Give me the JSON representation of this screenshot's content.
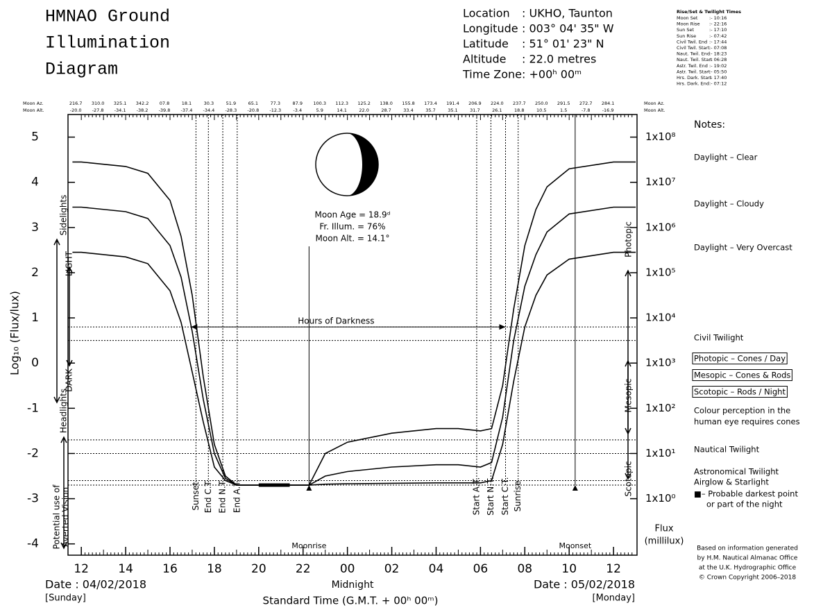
{
  "header": {
    "title_lines": [
      "HMNAO Ground",
      "Illumination",
      "Diagram"
    ],
    "location": [
      [
        "Location",
        ": UKHO, Taunton"
      ],
      [
        "Longitude",
        ": 003° 04' 35\" W"
      ],
      [
        "Latitude",
        ": 51° 01' 23\" N"
      ],
      [
        "Altitude",
        ": 22.0 metres"
      ],
      [
        "Time Zone",
        ": +00ʰ 00ᵐ"
      ]
    ]
  },
  "rise_set": {
    "title": "Rise/Set & Twilight Times",
    "rows": [
      [
        "Moon Set",
        ":- 10:16"
      ],
      [
        "Moon Rise",
        ":- 22:16"
      ],
      [
        "Sun Set",
        ":- 17:10"
      ],
      [
        "Sun Rise",
        ":- 07:42"
      ],
      [
        "Civil Twil. End",
        ":- 17:44"
      ],
      [
        "Civil Twil. Start",
        ":- 07:08"
      ],
      [
        "Naut. Twil. End",
        ":- 18:23"
      ],
      [
        "Naut. Twil. Start",
        ":- 06:28"
      ],
      [
        "Astr. Twil. End",
        ":- 19:02"
      ],
      [
        "Astr. Twil. Start",
        ":- 05:50"
      ],
      [
        "Hrs. Dark. Start",
        ":- 17:40"
      ],
      [
        "Hrs. Dark. End",
        ":- 07:12"
      ]
    ]
  },
  "moon_info": [
    "Moon Age = 18.9ᵈ",
    "Fr. Illum. = 76%",
    "Moon Alt. = 14.1°"
  ],
  "notes": [
    "Notes:",
    "Daylight – Clear",
    "Daylight – Cloudy",
    "Daylight – Very Overcast",
    "Civil Twilight",
    "Photopic – Cones / Day",
    "Mesopic – Cones & Rods",
    "Scotopic – Rods / Night",
    "Colour perception in the",
    "human eye requires cones",
    "Nautical Twilight",
    "Astronomical Twilight",
    "Airglow & Starlight",
    "■– Probable darkest point",
    "or part of the night"
  ],
  "credit": [
    "Based on information generated",
    "by H.M. Nautical Almanac Office",
    "at the U.K. Hydrographic Office",
    "© Crown Copyright 2006–2018"
  ],
  "side_labels": {
    "left": [
      "Sidelights",
      "LIGHT",
      "DARK",
      "Headlights",
      "Potential use of",
      "Averted Vision"
    ],
    "right": [
      "Photopic",
      "Mesopic",
      "Scotopic"
    ]
  },
  "footer": {
    "left_date": "Date : 04/02/2018",
    "left_day": "[Sunday]",
    "midnight": "Midnight",
    "right_date": "Date : 05/02/2018",
    "right_day": "[Monday]",
    "time_label": "Standard Time (G.M.T. + 00ʰ 00ᵐ)"
  },
  "chart_data": {
    "type": "line",
    "y_label": "Log₁₀ (Flux/lux)",
    "y2_label": [
      "Flux",
      "(millilux)"
    ],
    "top_rows": {
      "az_label": "Moon Az.",
      "alt_label": "Moon Alt.",
      "az": [
        "216.7",
        "310.0",
        "325.1",
        "342.2",
        "07.8",
        "18.1",
        "30.3",
        "51.9",
        "65.1",
        "77.3",
        "87.9",
        "100.3",
        "112.3",
        "125.2",
        "138.0",
        "155.8",
        "173.4",
        "191.4",
        "206.9",
        "224.0",
        "237.7",
        "250.0",
        "291.5",
        "272.7",
        "284.1"
      ],
      "alt": [
        "-20.0",
        "-27.8",
        "-34.1",
        "-38.2",
        "-39.8",
        "-37.4",
        "-34.4",
        "-28.3",
        "-20.8",
        "-12.3",
        "-3.4",
        "5.9",
        "14.1",
        "22.0",
        "28.7",
        "33.4",
        "35.7",
        "35.1",
        "31.7",
        "26.1",
        "18.8",
        "10.5",
        "1.5",
        "-7.8",
        "-16.9"
      ]
    },
    "x": [
      11.6,
      12,
      14,
      15,
      16,
      16.5,
      17,
      17.5,
      18,
      18.5,
      19,
      20,
      22.27,
      23,
      24,
      26,
      28,
      29,
      30,
      30.5,
      31,
      31.5,
      32,
      32.5,
      33,
      34,
      36,
      37
    ],
    "series": [
      {
        "name": "Daylight – Clear",
        "color": "#000000",
        "values": [
          4.45,
          4.45,
          4.35,
          4.2,
          3.6,
          2.8,
          1.5,
          -0.3,
          -1.8,
          -2.5,
          -2.7,
          -2.7,
          -2.7,
          -2.0,
          -1.75,
          -1.55,
          -1.45,
          -1.45,
          -1.5,
          -1.45,
          -0.5,
          1.2,
          2.6,
          3.4,
          3.9,
          4.3,
          4.45,
          4.45
        ]
      },
      {
        "name": "Daylight – Cloudy",
        "color": "#000000",
        "values": [
          3.45,
          3.45,
          3.35,
          3.2,
          2.6,
          1.9,
          0.7,
          -0.8,
          -2.0,
          -2.55,
          -2.7,
          -2.7,
          -2.7,
          -2.5,
          -2.4,
          -2.3,
          -2.25,
          -2.25,
          -2.3,
          -2.2,
          -1.2,
          0.5,
          1.7,
          2.4,
          2.9,
          3.3,
          3.45,
          3.45
        ]
      },
      {
        "name": "Daylight – Very Overcast",
        "color": "#000000",
        "values": [
          2.45,
          2.45,
          2.35,
          2.2,
          1.6,
          0.9,
          -0.2,
          -1.3,
          -2.3,
          -2.6,
          -2.7,
          -2.7,
          -2.7,
          -2.68,
          -2.67,
          -2.66,
          -2.65,
          -2.65,
          -2.65,
          -2.6,
          -1.8,
          -0.4,
          0.8,
          1.5,
          1.95,
          2.3,
          2.45,
          2.45
        ]
      }
    ],
    "reference_lines": [
      0.8,
      0.5,
      -1.7,
      -2.0,
      -2.6,
      -2.7
    ],
    "darkness": {
      "label": "Hours of Darkness",
      "value": 0.8
    },
    "darkest_period": {
      "x": [
        20.0,
        21.4
      ],
      "value": -2.7
    },
    "events": [
      {
        "label": "Sunset",
        "x": 17.17
      },
      {
        "label": "End C.T.",
        "x": 17.73
      },
      {
        "label": "End N.T.",
        "x": 18.38
      },
      {
        "label": "End A.T.",
        "x": 19.03
      },
      {
        "label": "Start A.T.",
        "x": 29.83
      },
      {
        "label": "Start N.T.",
        "x": 30.47
      },
      {
        "label": "Start C.T.",
        "x": 31.13
      },
      {
        "label": "Sunrise",
        "x": 31.7
      }
    ],
    "moon_events": [
      {
        "label": "Moonrise",
        "x": 22.27
      },
      {
        "label": "Moonset",
        "x": 34.27
      }
    ],
    "xlim": [
      11.4,
      37.06
    ],
    "xticks": [
      12,
      14,
      16,
      18,
      20,
      22,
      {
        "value": 24,
        "label": "00"
      },
      {
        "value": 26,
        "label": "02"
      },
      {
        "value": 28,
        "label": "04"
      },
      {
        "value": 30,
        "label": "06"
      },
      {
        "value": 32,
        "label": "08"
      },
      {
        "value": 34,
        "label": "10"
      },
      {
        "value": 36,
        "label": "12"
      }
    ],
    "ylim": [
      -4.25,
      5.5
    ],
    "yticks": [
      -4,
      -3,
      -2,
      -1,
      0,
      1,
      2,
      3,
      4,
      5
    ],
    "y2lim": [
      -4.25,
      5.5
    ],
    "y2ticks": [
      {
        "value": -3,
        "label": "1x10⁰"
      },
      {
        "value": -2,
        "label": "1x10¹"
      },
      {
        "value": -1,
        "label": "1x10²"
      },
      {
        "value": 0,
        "label": "1x10³"
      },
      {
        "value": 1,
        "label": "1x10⁴"
      },
      {
        "value": 2,
        "label": "1x10⁵"
      },
      {
        "value": 3,
        "label": "1x10⁶"
      },
      {
        "value": 4,
        "label": "1x10⁷"
      },
      {
        "value": 5,
        "label": "1x10⁸"
      }
    ]
  }
}
